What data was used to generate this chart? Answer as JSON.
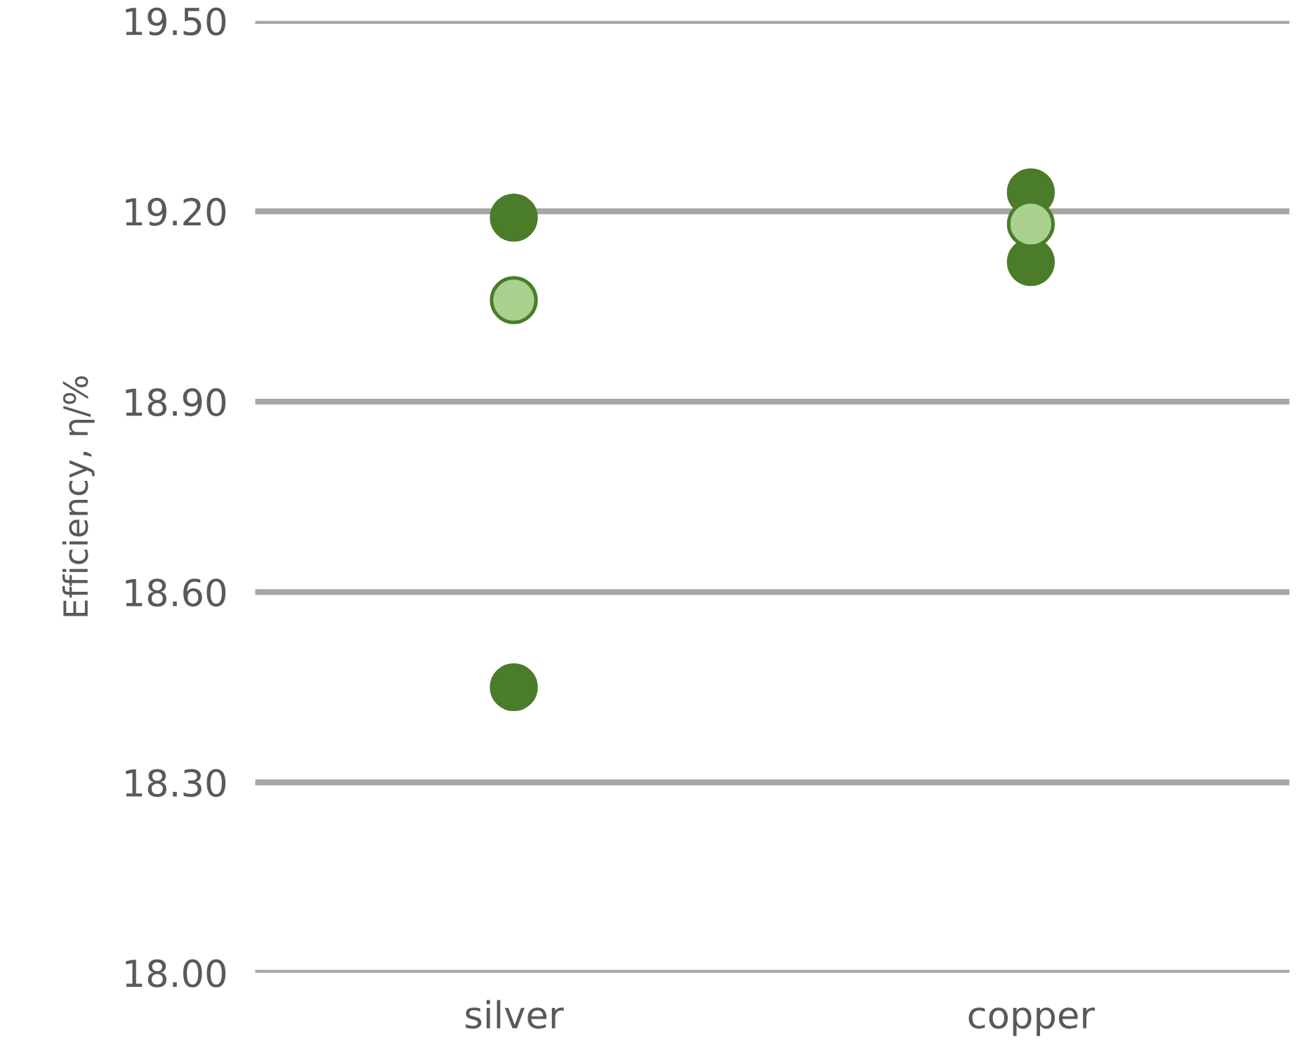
{
  "chart_data": {
    "type": "scatter",
    "ylabel": "Efficiency, η/%",
    "categories": [
      "silver",
      "copper"
    ],
    "series": [
      {
        "color": "#4a7c2a",
        "x": [
          "silver",
          "silver",
          "copper",
          "copper"
        ],
        "values": [
          19.19,
          18.45,
          19.23,
          19.12
        ]
      },
      {
        "color": "#a9d18e",
        "x": [
          "silver",
          "copper"
        ],
        "values": [
          19.06,
          19.18
        ]
      }
    ],
    "ylim": [
      18.0,
      19.5
    ],
    "yticks": [
      {
        "value": 18.0,
        "label": "18.00"
      },
      {
        "value": 18.3,
        "label": "18.30"
      },
      {
        "value": 18.6,
        "label": "18.60"
      },
      {
        "value": 18.9,
        "label": "18.90"
      },
      {
        "value": 19.2,
        "label": "19.20"
      },
      {
        "value": 19.5,
        "label": "19.50"
      }
    ],
    "grid": "y",
    "marker": "circle",
    "legend": false
  }
}
